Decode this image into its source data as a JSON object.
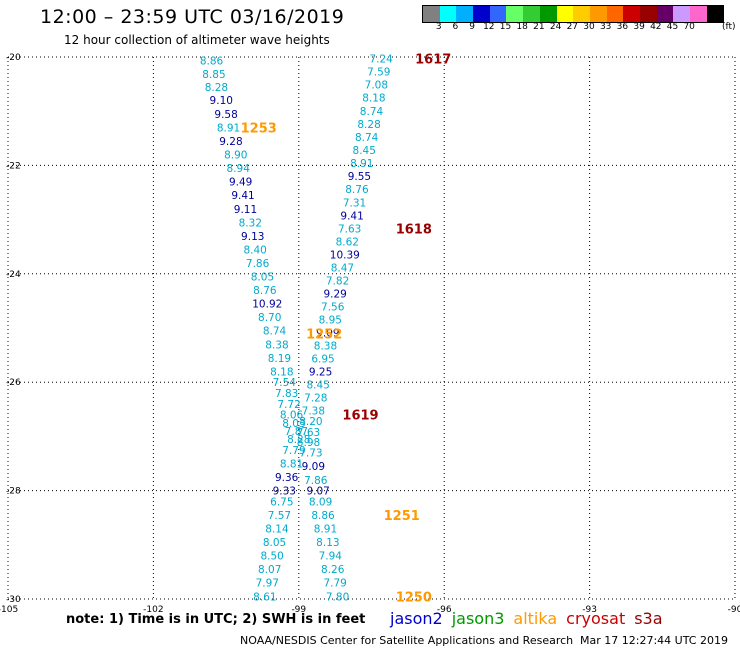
{
  "title": "12:00 – 23:59 UTC 03/16/2019",
  "subtitle": "12 hour collection of altimeter wave heights",
  "note": "note: 1) Time is in UTC; 2) SWH is in feet",
  "credit": "NOAA/NESDIS Center for Satellite Applications and Research",
  "timestamp": "Mar 17 12:27:44 UTC 2019",
  "satellites": [
    {
      "name": "jason2",
      "color": "#0000cc"
    },
    {
      "name": "jason3",
      "color": "#009900"
    },
    {
      "name": "altika",
      "color": "#ff9900"
    },
    {
      "name": "cryosat",
      "color": "#cc0000"
    },
    {
      "name": "s3a",
      "color": "#990000"
    }
  ],
  "colorbar": {
    "unit": "(ft)",
    "colors": [
      "#808080",
      "#00ffff",
      "#00b0ff",
      "#0000cc",
      "#3366ff",
      "#66ff66",
      "#33cc33",
      "#009900",
      "#ffff00",
      "#ffcc00",
      "#ff9900",
      "#ff6600",
      "#cc0000",
      "#990000",
      "#660066",
      "#cc99ff",
      "#ff66cc",
      "#000000"
    ],
    "labels": [
      "3",
      "6",
      "9",
      "12",
      "15",
      "18",
      "21",
      "24",
      "27",
      "30",
      "33",
      "36",
      "39",
      "42",
      "45",
      "70"
    ]
  },
  "chart_data": {
    "type": "scatter",
    "title": "12:00 – 23:59 UTC 03/16/2019",
    "subtitle": "12 hour collection of altimeter wave heights",
    "xlabel": "",
    "ylabel": "",
    "xlim": [
      -105,
      -90
    ],
    "ylim": [
      -30,
      -20
    ],
    "x_ticks": [
      "-105",
      "-102",
      "-99",
      "-96",
      "-93",
      "-90"
    ],
    "y_ticks": [
      "-20",
      "-22",
      "-24",
      "-26",
      "-28",
      "-30"
    ],
    "grid": "dotted",
    "unit": "ft",
    "series": [
      {
        "track": "west",
        "points": [
          {
            "x": -100.8,
            "y": -20.06,
            "v": "8.86",
            "color": "#00aacc"
          },
          {
            "x": -100.75,
            "y": -20.31,
            "v": "8.85",
            "color": "#00aacc"
          },
          {
            "x": -100.7,
            "y": -20.55,
            "v": "8.28",
            "color": "#00aacc"
          },
          {
            "x": -100.6,
            "y": -20.79,
            "v": "9.10",
            "color": "#000099"
          },
          {
            "x": -100.5,
            "y": -21.05,
            "v": "9.58",
            "color": "#000099"
          },
          {
            "x": -100.45,
            "y": -21.3,
            "v": "8.91",
            "color": "#00aacc"
          },
          {
            "x": -100.4,
            "y": -21.55,
            "v": "9.28",
            "color": "#000099"
          },
          {
            "x": -100.3,
            "y": -21.8,
            "v": "8.90",
            "color": "#00aacc"
          },
          {
            "x": -100.25,
            "y": -22.05,
            "v": "8.94",
            "color": "#00aacc"
          },
          {
            "x": -100.2,
            "y": -22.3,
            "v": "9.49",
            "color": "#000099"
          },
          {
            "x": -100.15,
            "y": -22.55,
            "v": "9.41",
            "color": "#000099"
          },
          {
            "x": -100.1,
            "y": -22.8,
            "v": "9.11",
            "color": "#000099"
          },
          {
            "x": -100.0,
            "y": -23.05,
            "v": "8.32",
            "color": "#00aacc"
          },
          {
            "x": -99.95,
            "y": -23.3,
            "v": "9.13",
            "color": "#000099"
          },
          {
            "x": -99.9,
            "y": -23.55,
            "v": "8.40",
            "color": "#00aacc"
          },
          {
            "x": -99.85,
            "y": -23.8,
            "v": "7.86",
            "color": "#00aacc"
          },
          {
            "x": -99.75,
            "y": -24.05,
            "v": "8.05",
            "color": "#00aacc"
          },
          {
            "x": -99.7,
            "y": -24.3,
            "v": "8.76",
            "color": "#00aacc"
          },
          {
            "x": -99.65,
            "y": -24.55,
            "v": "10.92",
            "color": "#000099"
          },
          {
            "x": -99.6,
            "y": -24.8,
            "v": "8.70",
            "color": "#00aacc"
          },
          {
            "x": -99.5,
            "y": -25.05,
            "v": "8.74",
            "color": "#00aacc"
          },
          {
            "x": -99.45,
            "y": -25.3,
            "v": "8.38",
            "color": "#00aacc"
          },
          {
            "x": -99.4,
            "y": -25.55,
            "v": "8.19",
            "color": "#00aacc"
          },
          {
            "x": -99.35,
            "y": -25.8,
            "v": "8.18",
            "color": "#00aacc"
          },
          {
            "x": -99.3,
            "y": -26.0,
            "v": "7.54",
            "color": "#00aacc"
          },
          {
            "x": -99.25,
            "y": -26.2,
            "v": "7.83",
            "color": "#00aacc"
          },
          {
            "x": -99.2,
            "y": -26.4,
            "v": "7.72",
            "color": "#00aacc"
          },
          {
            "x": -99.15,
            "y": -26.6,
            "v": "8.06",
            "color": "#00aacc"
          },
          {
            "x": -99.1,
            "y": -26.75,
            "v": "8.03",
            "color": "#00aacc"
          },
          {
            "x": -99.05,
            "y": -26.9,
            "v": "7.87",
            "color": "#00aacc"
          },
          {
            "x": -99.0,
            "y": -27.05,
            "v": "8.28",
            "color": "#00aacc"
          },
          {
            "x": -99.1,
            "y": -27.25,
            "v": "7.79",
            "color": "#00aacc"
          },
          {
            "x": -99.15,
            "y": -27.5,
            "v": "8.81",
            "color": "#00aacc"
          },
          {
            "x": -99.25,
            "y": -27.75,
            "v": "9.36",
            "color": "#000099"
          },
          {
            "x": -99.3,
            "y": -28.0,
            "v": "9.33",
            "color": "#000099"
          },
          {
            "x": -99.35,
            "y": -28.2,
            "v": "6.75",
            "color": "#00aacc"
          },
          {
            "x": -99.4,
            "y": -28.45,
            "v": "7.57",
            "color": "#00aacc"
          },
          {
            "x": -99.45,
            "y": -28.7,
            "v": "8.14",
            "color": "#00aacc"
          },
          {
            "x": -99.5,
            "y": -28.95,
            "v": "8.05",
            "color": "#00aacc"
          },
          {
            "x": -99.55,
            "y": -29.2,
            "v": "8.50",
            "color": "#00aacc"
          },
          {
            "x": -99.6,
            "y": -29.45,
            "v": "8.07",
            "color": "#00aacc"
          },
          {
            "x": -99.65,
            "y": -29.7,
            "v": "7.97",
            "color": "#00aacc"
          },
          {
            "x": -99.7,
            "y": -29.95,
            "v": "8.61",
            "color": "#00aacc"
          }
        ]
      },
      {
        "track": "east",
        "points": [
          {
            "x": -97.3,
            "y": -20.03,
            "v": "7.24",
            "color": "#00aacc"
          },
          {
            "x": -97.35,
            "y": -20.27,
            "v": "7.59",
            "color": "#00aacc"
          },
          {
            "x": -97.4,
            "y": -20.51,
            "v": "7.08",
            "color": "#00aacc"
          },
          {
            "x": -97.45,
            "y": -20.75,
            "v": "8.18",
            "color": "#00aacc"
          },
          {
            "x": -97.5,
            "y": -21.0,
            "v": "8.74",
            "color": "#00aacc"
          },
          {
            "x": -97.55,
            "y": -21.24,
            "v": "8.28",
            "color": "#00aacc"
          },
          {
            "x": -97.6,
            "y": -21.48,
            "v": "8.74",
            "color": "#00aacc"
          },
          {
            "x": -97.65,
            "y": -21.72,
            "v": "8.45",
            "color": "#00aacc"
          },
          {
            "x": -97.7,
            "y": -21.96,
            "v": "8.91",
            "color": "#00aacc"
          },
          {
            "x": -97.75,
            "y": -22.2,
            "v": "9.55",
            "color": "#000099"
          },
          {
            "x": -97.8,
            "y": -22.44,
            "v": "8.76",
            "color": "#00aacc"
          },
          {
            "x": -97.85,
            "y": -22.68,
            "v": "7.31",
            "color": "#00aacc"
          },
          {
            "x": -97.9,
            "y": -22.92,
            "v": "9.41",
            "color": "#000099"
          },
          {
            "x": -97.95,
            "y": -23.16,
            "v": "7.63",
            "color": "#00aacc"
          },
          {
            "x": -98.0,
            "y": -23.4,
            "v": "8.62",
            "color": "#00aacc"
          },
          {
            "x": -98.05,
            "y": -23.64,
            "v": "10.39",
            "color": "#000099"
          },
          {
            "x": -98.1,
            "y": -23.88,
            "v": "8.47",
            "color": "#00aacc"
          },
          {
            "x": -98.2,
            "y": -24.12,
            "v": "7.82",
            "color": "#00aacc"
          },
          {
            "x": -98.25,
            "y": -24.36,
            "v": "9.29",
            "color": "#000099"
          },
          {
            "x": -98.3,
            "y": -24.6,
            "v": "7.56",
            "color": "#00aacc"
          },
          {
            "x": -98.35,
            "y": -24.84,
            "v": "8.95",
            "color": "#00aacc"
          },
          {
            "x": -98.4,
            "y": -25.08,
            "v": "9.09",
            "color": "#000099"
          },
          {
            "x": -98.45,
            "y": -25.32,
            "v": "8.38",
            "color": "#00aacc"
          },
          {
            "x": -98.5,
            "y": -25.56,
            "v": "6.95",
            "color": "#00aacc"
          },
          {
            "x": -98.55,
            "y": -25.8,
            "v": "9.25",
            "color": "#000099"
          },
          {
            "x": -98.6,
            "y": -26.04,
            "v": "8.45",
            "color": "#00aacc"
          },
          {
            "x": -98.65,
            "y": -26.28,
            "v": "7.28",
            "color": "#00aacc"
          },
          {
            "x": -98.7,
            "y": -26.52,
            "v": "7.38",
            "color": "#00aacc"
          },
          {
            "x": -98.75,
            "y": -26.72,
            "v": "8.20",
            "color": "#00aacc"
          },
          {
            "x": -98.8,
            "y": -26.92,
            "v": "7.63",
            "color": "#00aacc"
          },
          {
            "x": -98.8,
            "y": -27.1,
            "v": "8.98",
            "color": "#00aacc"
          },
          {
            "x": -98.75,
            "y": -27.3,
            "v": "7.73",
            "color": "#00aacc"
          },
          {
            "x": -98.7,
            "y": -27.55,
            "v": "9.09",
            "color": "#000099"
          },
          {
            "x": -98.65,
            "y": -27.8,
            "v": "7.86",
            "color": "#00aacc"
          },
          {
            "x": -98.6,
            "y": -28.0,
            "v": "9.07",
            "color": "#000099"
          },
          {
            "x": -98.55,
            "y": -28.2,
            "v": "8.09",
            "color": "#00aacc"
          },
          {
            "x": -98.5,
            "y": -28.45,
            "v": "8.86",
            "color": "#00aacc"
          },
          {
            "x": -98.45,
            "y": -28.7,
            "v": "8.91",
            "color": "#00aacc"
          },
          {
            "x": -98.4,
            "y": -28.95,
            "v": "8.13",
            "color": "#00aacc"
          },
          {
            "x": -98.35,
            "y": -29.2,
            "v": "7.94",
            "color": "#00aacc"
          },
          {
            "x": -98.3,
            "y": -29.45,
            "v": "8.26",
            "color": "#00aacc"
          },
          {
            "x": -98.25,
            "y": -29.7,
            "v": "7.79",
            "color": "#00aacc"
          },
          {
            "x": -98.2,
            "y": -29.95,
            "v": "7.80",
            "color": "#00aacc"
          }
        ]
      }
    ],
    "time_labels": [
      {
        "x": -96.6,
        "y": -20.03,
        "text": "1617",
        "color": "#990000"
      },
      {
        "x": -100.2,
        "y": -21.3,
        "text": "1253",
        "color": "#ff9900"
      },
      {
        "x": -97.0,
        "y": -23.16,
        "text": "1618",
        "color": "#990000"
      },
      {
        "x": -98.85,
        "y": -25.1,
        "text": "1252",
        "color": "#ff9900"
      },
      {
        "x": -98.1,
        "y": -26.6,
        "text": "1619",
        "color": "#990000"
      },
      {
        "x": -97.25,
        "y": -28.45,
        "text": "1251",
        "color": "#ff9900"
      },
      {
        "x": -97.0,
        "y": -29.95,
        "text": "1250",
        "color": "#ff9900"
      }
    ]
  }
}
